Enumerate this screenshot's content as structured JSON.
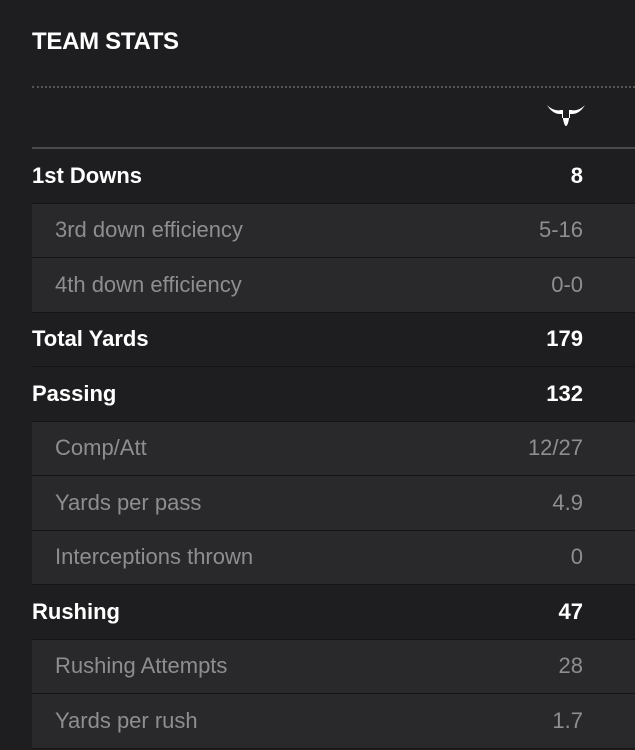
{
  "header": {
    "title": "TEAM STATS"
  },
  "table": {
    "sections": [
      {
        "label": "1st Downs",
        "value": 8,
        "rows": [
          {
            "label": "3rd down efficiency",
            "value": "5-16"
          },
          {
            "label": "4th down efficiency",
            "value": "0-0"
          }
        ]
      },
      {
        "label": "Total Yards",
        "value": 179,
        "rows": []
      },
      {
        "label": "Passing",
        "value": 132,
        "rows": [
          {
            "label": "Comp/Att",
            "value": "12/27"
          },
          {
            "label": "Yards per pass",
            "value": 4.9
          },
          {
            "label": "Interceptions thrown",
            "value": 0
          }
        ]
      },
      {
        "label": "Rushing",
        "value": 47,
        "rows": [
          {
            "label": "Rushing Attempts",
            "value": 28
          },
          {
            "label": "Yards per rush",
            "value": 1.7
          }
        ]
      }
    ]
  }
}
